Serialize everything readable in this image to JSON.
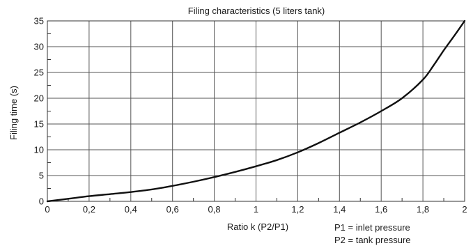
{
  "chart_data": {
    "type": "line",
    "title": "Filing characteristics (5 liters tank)",
    "xlabel": "Ratio k (P2/P1)",
    "ylabel": "Filing time (s)",
    "xlim": [
      0,
      2
    ],
    "ylim": [
      0,
      35
    ],
    "grid": true,
    "x_ticks": [
      0,
      0.2,
      0.4,
      0.6,
      0.8,
      1,
      1.2,
      1.4,
      1.6,
      1.8,
      2
    ],
    "x_tick_labels": [
      "0",
      "0,2",
      "0,4",
      "0,6",
      "0,8",
      "1",
      "1,2",
      "1,4",
      "1,6",
      "1,8",
      "2"
    ],
    "y_ticks": [
      0,
      5,
      10,
      15,
      20,
      25,
      30,
      35
    ],
    "y_tick_labels": [
      "0",
      "5",
      "10",
      "15",
      "20",
      "25",
      "30",
      "35"
    ],
    "annotations": [
      "P1 = inlet pressure",
      "P2 = tank pressure"
    ],
    "line_color": "#111111",
    "series": [
      {
        "x": [
          0,
          0.1,
          0.2,
          0.3,
          0.4,
          0.5,
          0.6,
          0.7,
          0.8,
          0.9,
          1.0,
          1.1,
          1.2,
          1.3,
          1.4,
          1.5,
          1.6,
          1.7,
          1.8,
          1.85,
          1.9,
          1.95,
          2.0
        ],
        "y": [
          0,
          0.5,
          1.0,
          1.4,
          1.8,
          2.3,
          3.0,
          3.8,
          4.7,
          5.7,
          6.8,
          8.0,
          9.5,
          11.3,
          13.3,
          15.3,
          17.5,
          20.0,
          23.6,
          26.3,
          29.3,
          32.1,
          35.0
        ]
      }
    ]
  }
}
